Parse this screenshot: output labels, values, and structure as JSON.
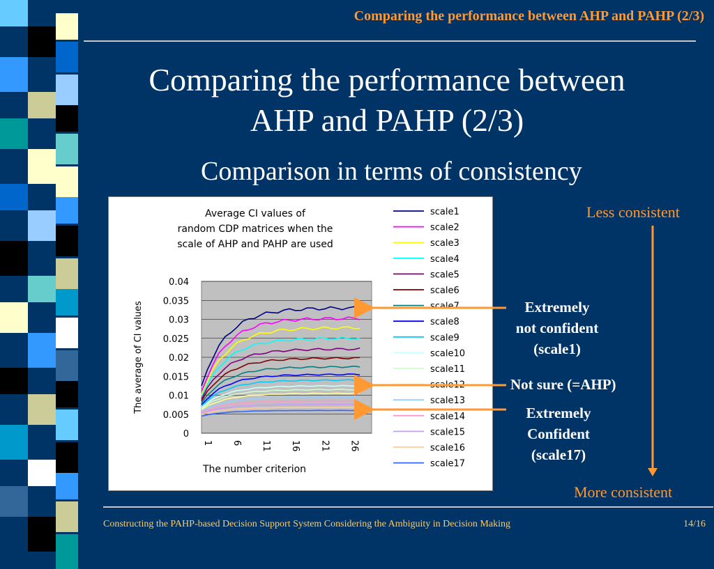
{
  "header": {
    "title": "Comparing the performance between AHP and PAHP (2/3)"
  },
  "slide": {
    "title_line1": "Comparing the performance between",
    "title_line2": "AHP and PAHP (2/3)",
    "subtitle": "Comparison in terms of consistency"
  },
  "annotations": {
    "scale1": [
      "Extremely",
      "not confident",
      "(scale1)"
    ],
    "ahp": "Not sure (=AHP)",
    "scale17": [
      "Extremely",
      "Confident",
      "(scale17)"
    ],
    "less": "Less consistent",
    "more": "More consistent"
  },
  "footer": {
    "text": "Constructing the PAHP-based Decision Support System Considering the Ambiguity in Decision Making",
    "page": "14/16"
  },
  "colors": {
    "background": "#003366",
    "accent": "#ff9933",
    "footer": "#ffcc66"
  },
  "chart_data": {
    "type": "line",
    "title_lines": [
      "Average CI values of",
      "random CDP matrices when the",
      "scale of AHP and PAHP are used"
    ],
    "xlabel": "The number criterion",
    "ylabel": "The average of CI values",
    "xlim": [
      1,
      30
    ],
    "ylim": [
      0,
      0.04
    ],
    "x_ticks": [
      "1",
      "6",
      "11",
      "16",
      "21",
      "26"
    ],
    "y_ticks": [
      "0",
      "0.005",
      "0.01",
      "0.015",
      "0.02",
      "0.025",
      "0.03",
      "0.035",
      "0.04"
    ],
    "grid": true,
    "plot_background": "#c0c0c0",
    "legend_position": "right",
    "series": [
      {
        "name": "scale1",
        "color": "#000080",
        "start": 0.0125,
        "end": 0.033
      },
      {
        "name": "scale2",
        "color": "#ff00ff",
        "start": 0.011,
        "end": 0.0303
      },
      {
        "name": "scale3",
        "color": "#ffff00",
        "start": 0.01,
        "end": 0.0278
      },
      {
        "name": "scale4",
        "color": "#00ffff",
        "start": 0.0095,
        "end": 0.025
      },
      {
        "name": "scale5",
        "color": "#800080",
        "start": 0.009,
        "end": 0.0222
      },
      {
        "name": "scale6",
        "color": "#800000",
        "start": 0.0085,
        "end": 0.0198
      },
      {
        "name": "scale7",
        "color": "#008080",
        "start": 0.008,
        "end": 0.0175
      },
      {
        "name": "scale8",
        "color": "#0000ff",
        "start": 0.0075,
        "end": 0.0155
      },
      {
        "name": "scale9",
        "color": "#00ccff",
        "start": 0.0072,
        "end": 0.014
      },
      {
        "name": "scale10",
        "color": "#ccffff",
        "start": 0.0068,
        "end": 0.0125
      },
      {
        "name": "scale11",
        "color": "#ccffcc",
        "start": 0.0065,
        "end": 0.0115
      },
      {
        "name": "scale12",
        "color": "#ffff99",
        "start": 0.0062,
        "end": 0.0105
      },
      {
        "name": "scale13",
        "color": "#99ccff",
        "start": 0.0058,
        "end": 0.0095
      },
      {
        "name": "scale14",
        "color": "#ff99cc",
        "start": 0.0055,
        "end": 0.0085
      },
      {
        "name": "scale15",
        "color": "#cc99ff",
        "start": 0.0052,
        "end": 0.0076
      },
      {
        "name": "scale16",
        "color": "#ffcc99",
        "start": 0.005,
        "end": 0.0068
      },
      {
        "name": "scale17",
        "color": "#3366ff",
        "start": 0.0045,
        "end": 0.006
      }
    ]
  }
}
